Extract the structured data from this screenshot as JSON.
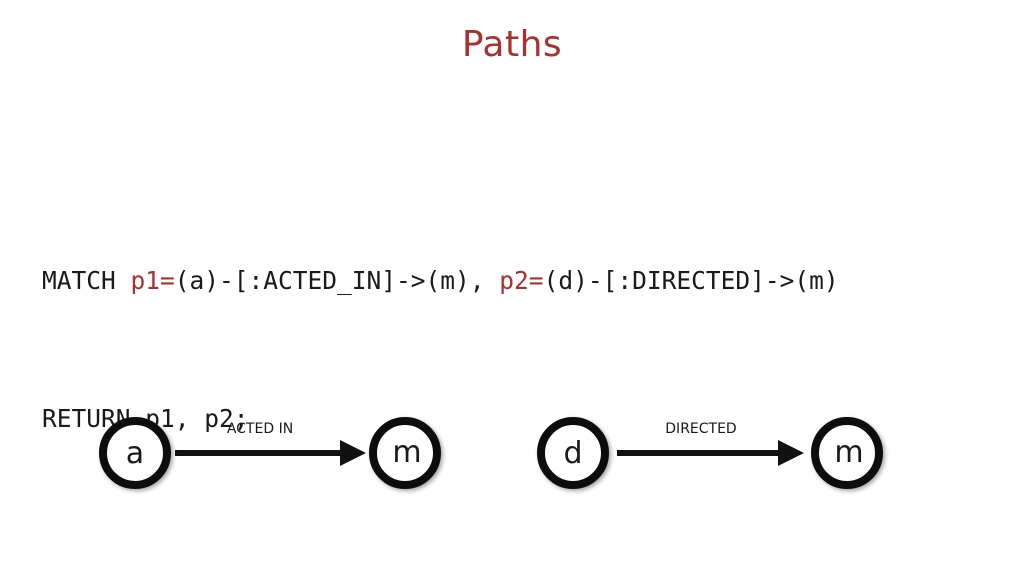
{
  "slide": {
    "title": "Paths"
  },
  "query": {
    "line1": {
      "match_kw": "MATCH ",
      "var1": "p1=",
      "pattern1": "(a)-[:ACTED_IN]->(m), ",
      "var2": "p2=",
      "pattern2": "(d)-[:DIRECTED]->(m)"
    },
    "line2": {
      "text": "RETURN p1, p2;"
    }
  },
  "diagram": {
    "path1": {
      "start_node": "a",
      "relationship": "ACTED IN",
      "end_node": "m"
    },
    "path2": {
      "start_node": "d",
      "relationship": "DIRECTED",
      "end_node": "m"
    }
  },
  "colors": {
    "accent": "#a8322d",
    "text": "#1a1a1a",
    "node_stroke": "#111111"
  }
}
